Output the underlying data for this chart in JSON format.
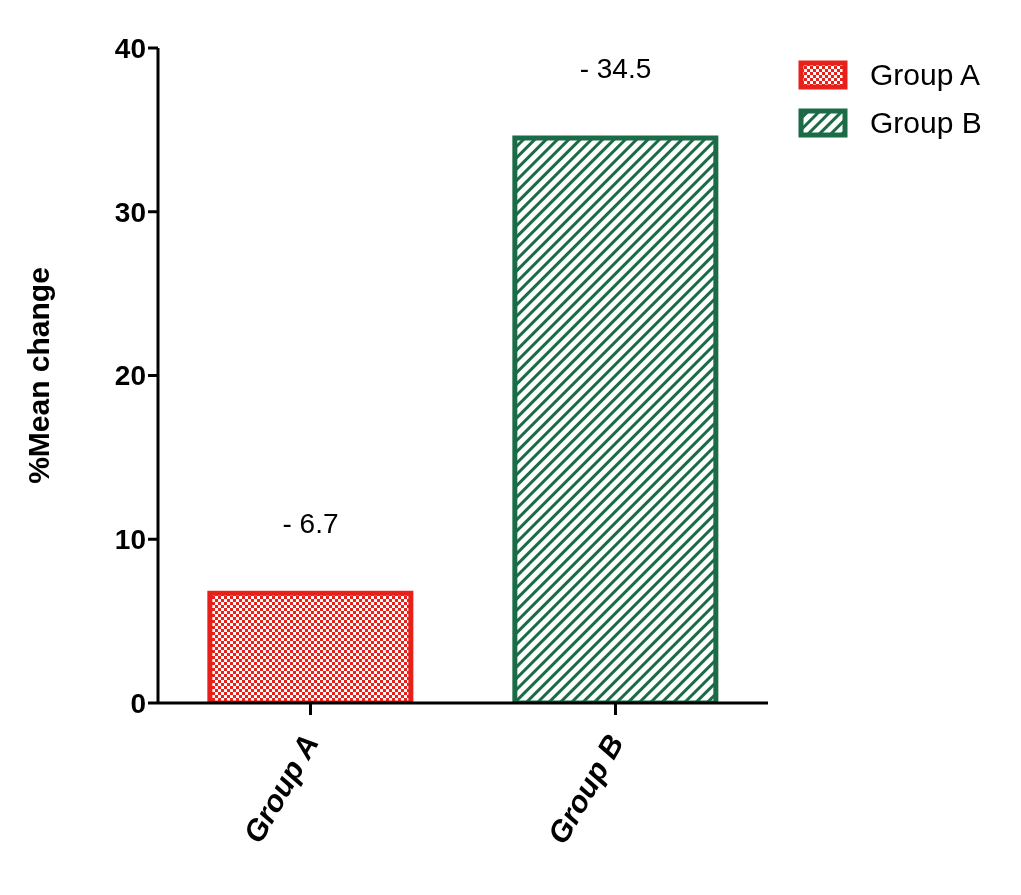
{
  "chart_data": {
    "type": "bar",
    "ylabel": "%Mean change",
    "categories": [
      "Group A",
      "Group B"
    ],
    "series": [
      {
        "name": "Group A",
        "color": "#e8201a",
        "values": [
          6.7,
          null
        ]
      },
      {
        "name": "Group B",
        "color": "#1b6b47",
        "values": [
          null,
          34.5
        ]
      }
    ],
    "annotations": [
      "- 6.7",
      "- 34.5"
    ],
    "stacked": true,
    "ylim": [
      0,
      40
    ],
    "yticks": [
      0,
      10,
      20,
      30,
      40
    ],
    "grid": false,
    "legend": "top right"
  }
}
